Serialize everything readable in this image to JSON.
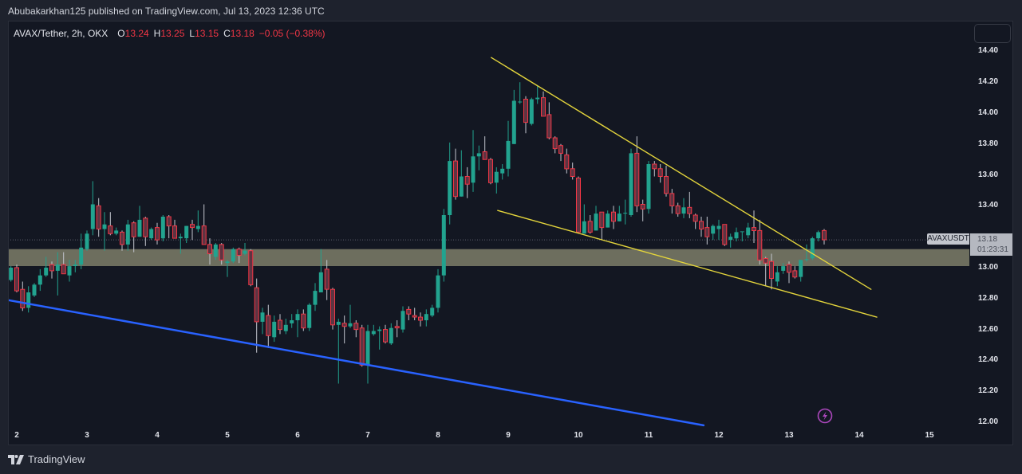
{
  "header": {
    "publisher_line": "Abubakarkhan125 published on TradingView.com, Jul 13, 2023 12:36 UTC"
  },
  "legend": {
    "symbol": "AVAX/Tether, 2h, OKX",
    "open_label": "O",
    "open": "13.24",
    "high_label": "H",
    "high": "13.25",
    "low_label": "L",
    "low": "13.15",
    "close_label": "C",
    "close": "13.18",
    "change": "−0.05 (−0.38%)"
  },
  "price_axis": {
    "symbol_label": "AVAXUSDT",
    "last_price": "13.18",
    "countdown": "01:23:31"
  },
  "footer": {
    "brand": "TradingView"
  },
  "colors": {
    "up": "#22a38f",
    "down_border": "#f23645",
    "down_fill": "#5e3442",
    "down_wick": "#c3c6cf",
    "trendline_blue": "#2962ff",
    "trendline_yellow": "#e3d43c",
    "zone": "#6d6e5e",
    "alert_icon": "#ab47bc"
  },
  "chart_data": {
    "type": "candlestick",
    "title": "AVAX/Tether, 2h, OKX",
    "timeframe": "2h",
    "xlabel": "",
    "ylabel": "",
    "ylim": [
      11.85,
      14.59
    ],
    "grid": false,
    "y_ticks": [
      {
        "label": "14.40",
        "value": 14.4
      },
      {
        "label": "14.20",
        "value": 14.2
      },
      {
        "label": "14.00",
        "value": 14.0
      },
      {
        "label": "13.80",
        "value": 13.8
      },
      {
        "label": "13.60",
        "value": 13.6
      },
      {
        "label": "13.40",
        "value": 13.4
      },
      {
        "label": "13.00",
        "value": 13.0
      },
      {
        "label": "12.80",
        "value": 12.8
      },
      {
        "label": "12.60",
        "value": 12.6
      },
      {
        "label": "12.40",
        "value": 12.4
      },
      {
        "label": "12.20",
        "value": 12.2
      },
      {
        "label": "12.00",
        "value": 12.0
      }
    ],
    "x_ticks": [
      {
        "label": "2",
        "bar": 0
      },
      {
        "label": "3",
        "bar": 12
      },
      {
        "label": "4",
        "bar": 24
      },
      {
        "label": "5",
        "bar": 36
      },
      {
        "label": "6",
        "bar": 48
      },
      {
        "label": "7",
        "bar": 60
      },
      {
        "label": "8",
        "bar": 72
      },
      {
        "label": "9",
        "bar": 84
      },
      {
        "label": "10",
        "bar": 96
      },
      {
        "label": "11",
        "bar": 108
      },
      {
        "label": "12",
        "bar": 120
      },
      {
        "label": "13",
        "bar": 132
      },
      {
        "label": "14",
        "bar": 144
      },
      {
        "label": "15",
        "bar": 156
      }
    ],
    "last_price": 13.18,
    "first_bar": -1,
    "candle_fields": [
      "open",
      "high",
      "low",
      "close"
    ],
    "candles": [
      [
        12.92,
        13.01,
        12.91,
        13.0
      ],
      [
        13.0,
        13.02,
        12.84,
        12.85
      ],
      [
        12.86,
        12.91,
        12.72,
        12.74
      ],
      [
        12.74,
        12.88,
        12.71,
        12.84
      ],
      [
        12.82,
        12.9,
        12.81,
        12.89
      ],
      [
        12.89,
        12.99,
        12.85,
        12.95
      ],
      [
        12.95,
        13.07,
        12.94,
        13.0
      ],
      [
        13.02,
        13.04,
        12.93,
        12.98
      ],
      [
        12.98,
        13.1,
        12.82,
        13.02
      ],
      [
        13.02,
        13.1,
        12.96,
        12.96
      ],
      [
        12.95,
        13.05,
        12.91,
        13.01
      ],
      [
        13.01,
        13.05,
        12.97,
        13.02
      ],
      [
        13.02,
        13.22,
        12.99,
        13.13
      ],
      [
        13.12,
        13.24,
        13.11,
        13.22
      ],
      [
        13.25,
        13.56,
        13.21,
        13.41
      ],
      [
        13.4,
        13.45,
        13.2,
        13.25
      ],
      [
        13.25,
        13.36,
        13.11,
        13.28
      ],
      [
        13.27,
        13.36,
        13.21,
        13.22
      ],
      [
        13.22,
        13.26,
        13.21,
        13.24
      ],
      [
        13.23,
        13.24,
        13.11,
        13.15
      ],
      [
        13.15,
        13.31,
        13.11,
        13.28
      ],
      [
        13.29,
        13.3,
        13.1,
        13.2
      ],
      [
        13.2,
        13.4,
        13.2,
        13.31
      ],
      [
        13.32,
        13.33,
        13.14,
        13.2
      ],
      [
        13.19,
        13.26,
        13.18,
        13.25
      ],
      [
        13.26,
        13.29,
        13.15,
        13.18
      ],
      [
        13.19,
        13.34,
        13.17,
        13.33
      ],
      [
        13.33,
        13.34,
        13.19,
        13.27
      ],
      [
        13.27,
        13.31,
        13.19,
        13.19
      ],
      [
        13.19,
        13.22,
        13.09,
        13.2
      ],
      [
        13.19,
        13.27,
        13.16,
        13.27
      ],
      [
        13.28,
        13.31,
        13.18,
        13.26
      ],
      [
        13.25,
        13.37,
        13.23,
        13.27
      ],
      [
        13.27,
        13.41,
        13.15,
        13.15
      ],
      [
        13.15,
        13.19,
        13.02,
        13.09
      ],
      [
        13.07,
        13.16,
        13.05,
        13.15
      ],
      [
        13.15,
        13.16,
        13.02,
        13.05
      ],
      [
        13.03,
        13.05,
        12.94,
        13.04
      ],
      [
        13.04,
        13.13,
        13.03,
        13.12
      ],
      [
        13.12,
        13.13,
        13.03,
        13.08
      ],
      [
        13.09,
        13.16,
        13.08,
        13.11
      ],
      [
        13.11,
        13.12,
        12.88,
        12.89
      ],
      [
        12.87,
        12.93,
        12.45,
        12.65
      ],
      [
        12.65,
        12.74,
        12.57,
        12.71
      ],
      [
        12.69,
        12.76,
        12.48,
        12.56
      ],
      [
        12.55,
        12.69,
        12.52,
        12.65
      ],
      [
        12.66,
        12.7,
        12.57,
        12.6
      ],
      [
        12.59,
        12.67,
        12.57,
        12.63
      ],
      [
        12.64,
        12.7,
        12.61,
        12.66
      ],
      [
        12.66,
        12.73,
        12.55,
        12.7
      ],
      [
        12.7,
        12.73,
        12.59,
        12.61
      ],
      [
        12.61,
        12.77,
        12.59,
        12.76
      ],
      [
        12.76,
        12.9,
        12.72,
        12.85
      ],
      [
        12.84,
        13.12,
        12.84,
        12.97
      ],
      [
        12.99,
        13.05,
        12.79,
        12.86
      ],
      [
        12.86,
        12.87,
        12.6,
        12.63
      ],
      [
        12.63,
        12.67,
        12.25,
        12.65
      ],
      [
        12.64,
        12.69,
        12.51,
        12.62
      ],
      [
        12.62,
        12.76,
        12.61,
        12.64
      ],
      [
        12.64,
        12.66,
        12.55,
        12.6
      ],
      [
        12.61,
        12.63,
        12.36,
        12.37
      ],
      [
        12.37,
        12.63,
        12.25,
        12.59
      ],
      [
        12.57,
        12.63,
        12.56,
        12.59
      ],
      [
        12.59,
        12.62,
        12.47,
        12.6
      ],
      [
        12.6,
        12.63,
        12.51,
        12.52
      ],
      [
        12.51,
        12.64,
        12.5,
        12.61
      ],
      [
        12.62,
        12.66,
        12.55,
        12.61
      ],
      [
        12.6,
        12.75,
        12.58,
        12.72
      ],
      [
        12.73,
        12.75,
        12.66,
        12.7
      ],
      [
        12.69,
        12.74,
        12.66,
        12.68
      ],
      [
        12.68,
        12.71,
        12.62,
        12.66
      ],
      [
        12.66,
        12.73,
        12.62,
        12.7
      ],
      [
        12.69,
        12.76,
        12.68,
        12.74
      ],
      [
        12.74,
        12.99,
        12.71,
        12.95
      ],
      [
        12.95,
        13.38,
        12.91,
        13.34
      ],
      [
        13.34,
        13.81,
        13.28,
        13.69
      ],
      [
        13.69,
        13.77,
        13.44,
        13.46
      ],
      [
        13.46,
        13.76,
        13.46,
        13.59
      ],
      [
        13.59,
        13.65,
        13.45,
        13.54
      ],
      [
        13.55,
        13.89,
        13.49,
        13.72
      ],
      [
        13.72,
        13.79,
        13.63,
        13.74
      ],
      [
        13.75,
        13.85,
        13.7,
        13.7
      ],
      [
        13.7,
        13.71,
        13.54,
        13.55
      ],
      [
        13.55,
        13.65,
        13.48,
        13.62
      ],
      [
        13.61,
        13.67,
        13.57,
        13.64
      ],
      [
        13.64,
        13.95,
        13.59,
        13.82
      ],
      [
        13.8,
        14.15,
        13.8,
        14.08
      ],
      [
        14.07,
        14.2,
        14.06,
        14.075
      ],
      [
        14.09,
        14.11,
        13.87,
        13.94
      ],
      [
        13.93,
        14.1,
        13.92,
        14.09
      ],
      [
        14.09,
        14.18,
        14.06,
        14.1
      ],
      [
        14.1,
        14.14,
        13.98,
        13.98
      ],
      [
        13.99,
        14.07,
        13.83,
        13.84
      ],
      [
        13.84,
        13.85,
        13.74,
        13.77
      ],
      [
        13.79,
        13.8,
        13.69,
        13.74
      ],
      [
        13.73,
        13.77,
        13.61,
        13.64
      ],
      [
        13.64,
        13.68,
        13.57,
        13.59
      ],
      [
        13.58,
        13.59,
        13.22,
        13.23
      ],
      [
        13.22,
        13.41,
        13.22,
        13.3
      ],
      [
        13.3,
        13.34,
        13.22,
        13.23
      ],
      [
        13.24,
        13.4,
        13.24,
        13.35
      ],
      [
        13.36,
        13.36,
        13.18,
        13.26
      ],
      [
        13.26,
        13.37,
        13.26,
        13.35
      ],
      [
        13.36,
        13.4,
        13.25,
        13.3
      ],
      [
        13.3,
        13.4,
        13.3,
        13.35
      ],
      [
        13.35,
        13.44,
        13.28,
        13.355
      ],
      [
        13.34,
        13.77,
        13.33,
        13.74
      ],
      [
        13.74,
        13.85,
        13.36,
        13.4
      ],
      [
        13.41,
        13.44,
        13.3,
        13.38
      ],
      [
        13.38,
        13.69,
        13.35,
        13.67
      ],
      [
        13.67,
        13.69,
        13.59,
        13.64
      ],
      [
        13.64,
        13.67,
        13.55,
        13.59
      ],
      [
        13.59,
        13.66,
        13.46,
        13.48
      ],
      [
        13.48,
        13.51,
        13.35,
        13.4
      ],
      [
        13.4,
        13.42,
        13.33,
        13.35
      ],
      [
        13.35,
        13.45,
        13.32,
        13.39
      ],
      [
        13.39,
        13.49,
        13.32,
        13.35
      ],
      [
        13.34,
        13.35,
        13.25,
        13.3
      ],
      [
        13.3,
        13.33,
        13.2,
        13.25
      ],
      [
        13.26,
        13.33,
        13.15,
        13.2
      ],
      [
        13.22,
        13.28,
        13.18,
        13.27
      ],
      [
        13.25,
        13.31,
        13.18,
        13.27
      ],
      [
        13.28,
        13.28,
        13.14,
        13.15
      ],
      [
        13.18,
        13.22,
        13.13,
        13.2
      ],
      [
        13.19,
        13.26,
        13.17,
        13.23
      ],
      [
        13.23,
        13.23,
        13.17,
        13.235
      ],
      [
        13.21,
        13.29,
        13.19,
        13.26
      ],
      [
        13.26,
        13.37,
        13.16,
        13.24
      ],
      [
        13.24,
        13.31,
        13.02,
        13.05
      ],
      [
        13.06,
        13.07,
        12.88,
        13.03
      ],
      [
        13.04,
        13.09,
        12.86,
        12.93
      ],
      [
        12.91,
        13.01,
        12.88,
        12.97
      ],
      [
        12.98,
        13.03,
        12.96,
        13.01
      ],
      [
        13.02,
        13.04,
        12.9,
        12.97
      ],
      [
        12.98,
        13.01,
        12.93,
        12.94
      ],
      [
        12.94,
        13.05,
        12.91,
        13.05
      ],
      [
        13.05,
        13.15,
        13.04,
        13.055
      ],
      [
        13.06,
        13.2,
        13.05,
        13.19
      ],
      [
        13.19,
        13.24,
        13.17,
        13.23
      ],
      [
        13.24,
        13.25,
        13.15,
        13.18
      ]
    ],
    "zone": {
      "name": "support-zone",
      "price_top": 13.12,
      "price_bottom": 13.01
    },
    "drawings": [
      {
        "name": "blue-support-trendline",
        "color": "#2962ff",
        "width": 2.5,
        "from": {
          "bar": -1.5,
          "price": 12.79
        },
        "to": {
          "bar": 117.4,
          "price": 11.98
        }
      },
      {
        "name": "wedge-upper-trendline",
        "color": "#e3d43c",
        "width": 1.4,
        "from": {
          "bar": 81.1,
          "price": 14.36
        },
        "to": {
          "bar": 146.0,
          "price": 12.86
        }
      },
      {
        "name": "wedge-lower-trendline",
        "color": "#e3d43c",
        "width": 1.4,
        "from": {
          "bar": 82.2,
          "price": 13.37
        },
        "to": {
          "bar": 147.0,
          "price": 12.68
        }
      }
    ],
    "legend_position": "top-left"
  }
}
